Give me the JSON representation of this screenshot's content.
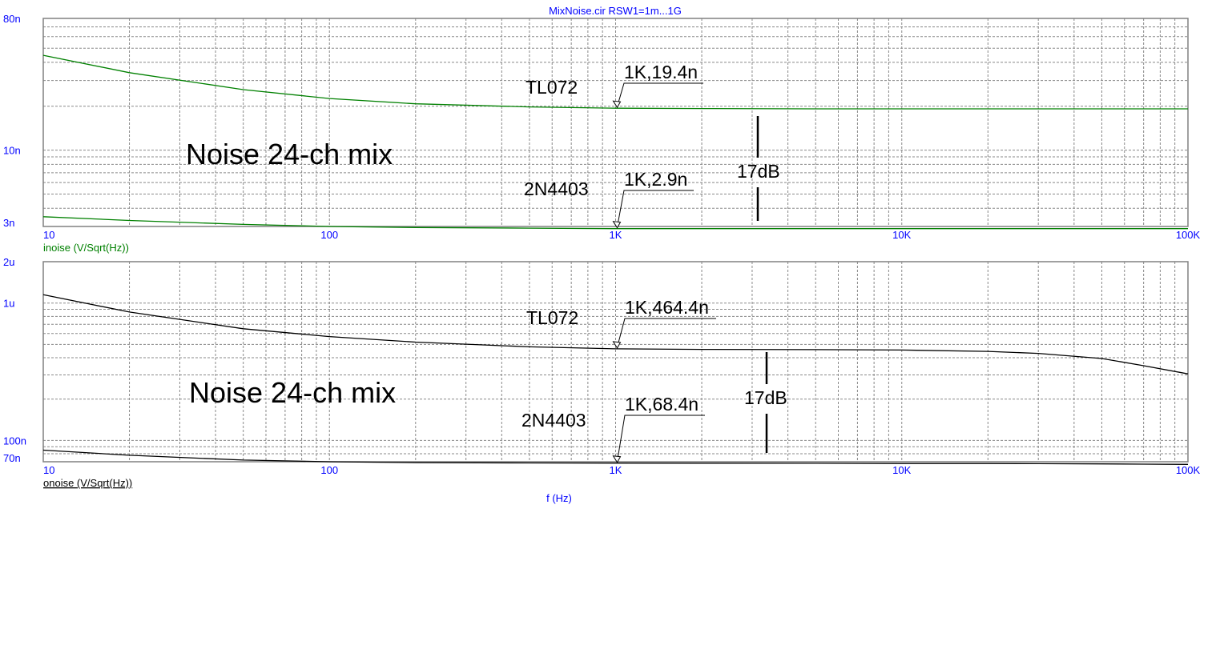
{
  "chart_data": [
    {
      "type": "line",
      "title": "MixNoise.cir RSW1=1m...1G",
      "ylabel": "inoise (V/Sqrt(Hz))",
      "xlabel": "",
      "x_scale": "log",
      "y_scale": "log",
      "xlim": [
        10,
        100000
      ],
      "ylim": [
        3e-09,
        8e-08
      ],
      "grid": true,
      "x_ticks": [
        "10",
        "100",
        "1K",
        "10K",
        "100K"
      ],
      "y_ticks": [
        {
          "label": "80n",
          "value": 8e-08
        },
        {
          "label": "10n",
          "value": 1e-08
        },
        {
          "label": "3n",
          "value": 3e-09
        }
      ],
      "trace_color": "#008000",
      "x": [
        10,
        20,
        50,
        100,
        200,
        500,
        1000,
        2000,
        5000,
        10000,
        20000,
        50000,
        100000
      ],
      "series": [
        {
          "values": [
            4.47e-08,
            3.4e-08,
            2.6e-08,
            2.26e-08,
            2.08e-08,
            1.98e-08,
            1.94e-08,
            1.93e-08,
            1.92e-08,
            1.92e-08,
            1.92e-08,
            1.92e-08,
            1.92e-08
          ]
        },
        {
          "values": [
            3.5e-09,
            3.3e-09,
            3.1e-09,
            3e-09,
            2.95e-09,
            2.92e-09,
            2.9e-09,
            2.9e-09,
            2.9e-09,
            2.9e-09,
            2.9e-09,
            2.9e-09,
            2.9e-09
          ]
        }
      ],
      "annotations": {
        "big_label": "Noise 24-ch mix",
        "upper_name": "TL072",
        "lower_name": "2N4403",
        "upper_marker": {
          "text": "1K,19.4n",
          "x": 1000,
          "y": 1.94e-08
        },
        "lower_marker": {
          "text": "1K,2.9n",
          "x": 1000,
          "y": 2.9e-09
        },
        "difference": "17dB"
      }
    },
    {
      "type": "line",
      "ylabel": "onoise (V/Sqrt(Hz))",
      "xlabel": "f (Hz)",
      "x_scale": "log",
      "y_scale": "log",
      "xlim": [
        10,
        100000
      ],
      "ylim": [
        7e-08,
        2e-06
      ],
      "grid": true,
      "x_ticks": [
        "10",
        "100",
        "1K",
        "10K",
        "100K"
      ],
      "y_ticks": [
        {
          "label": "2u",
          "value": 2e-06
        },
        {
          "label": "1u",
          "value": 1e-06
        },
        {
          "label": "100n",
          "value": 1e-07
        },
        {
          "label": "70n",
          "value": 7e-08
        }
      ],
      "trace_color": "#000000",
      "x": [
        10,
        20,
        50,
        100,
        200,
        500,
        1000,
        2000,
        5000,
        10000,
        20000,
        30000,
        50000,
        70000,
        100000
      ],
      "series": [
        {
          "values": [
            1.15e-06,
            8.6e-07,
            6.5e-07,
            5.7e-07,
            5.2e-07,
            4.8e-07,
            4.644e-07,
            4.6e-07,
            4.58e-07,
            4.55e-07,
            4.45e-07,
            4.3e-07,
            3.95e-07,
            3.5e-07,
            3.05e-07
          ]
        },
        {
          "values": [
            8.5e-08,
            7.8e-08,
            7.2e-08,
            7e-08,
            6.9e-08,
            6.86e-08,
            6.84e-08,
            6.83e-08,
            6.82e-08,
            6.8e-08,
            6.8e-08,
            6.78e-08,
            6.75e-08,
            6.72e-08,
            6.7e-08
          ]
        }
      ],
      "annotations": {
        "big_label": "Noise 24-ch mix",
        "upper_name": "TL072",
        "lower_name": "2N4403",
        "upper_marker": {
          "text": "1K,464.4n",
          "x": 1000,
          "y": 4.644e-07
        },
        "lower_marker": {
          "text": "1K,68.4n",
          "x": 1000,
          "y": 6.84e-08
        },
        "difference": "17dB"
      }
    }
  ]
}
